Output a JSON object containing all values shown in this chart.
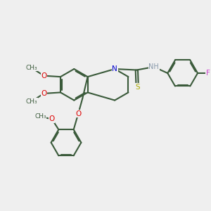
{
  "bg": "#efefef",
  "bc": "#3a5a3a",
  "lw": 1.5,
  "lw_thin": 1.2,
  "do": 0.05,
  "fs": 7.5,
  "fs_small": 6.5,
  "oc": "#dd0000",
  "nc": "#0000cc",
  "sc": "#aaaa00",
  "fc": "#cc44cc",
  "hc": "#8899aa",
  "figsize": [
    3.0,
    3.0
  ],
  "dpi": 100,
  "xlim": [
    0.0,
    10.0
  ],
  "ylim": [
    0.5,
    10.5
  ],
  "R": 0.75,
  "LCX": 3.5,
  "LCY": 6.5
}
